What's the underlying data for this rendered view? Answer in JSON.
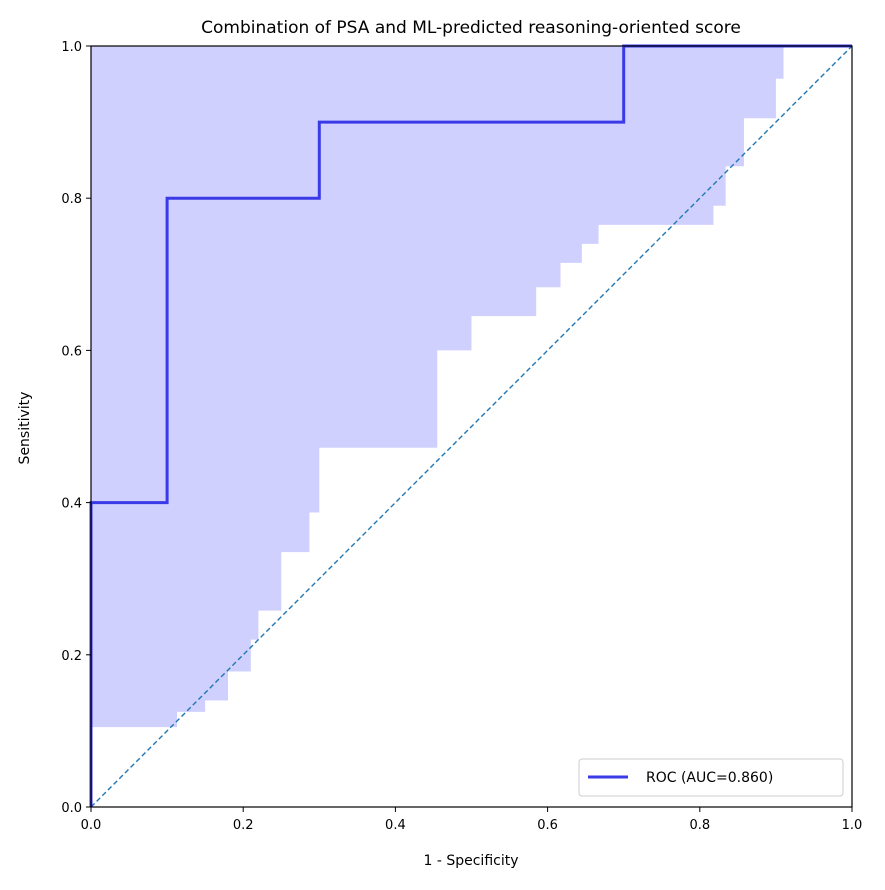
{
  "chart_data": {
    "type": "line",
    "title": "Combination of PSA and ML-predicted reasoning-oriented score",
    "xlabel": "1 - Specificity",
    "ylabel": "Sensitivity",
    "xlim": [
      0,
      1
    ],
    "ylim": [
      0,
      1
    ],
    "x_ticks": [
      "0.0",
      "0.2",
      "0.4",
      "0.6",
      "0.8",
      "1.0"
    ],
    "y_ticks": [
      "0.0",
      "0.2",
      "0.4",
      "0.6",
      "0.8",
      "1.0"
    ],
    "grid": false,
    "legend_position": "bottom-right",
    "colors": {
      "roc": "#3a3ae6",
      "band": "#d0d0ff",
      "chance": "#1f77b4"
    },
    "series": [
      {
        "name": "ROC (AUC=0.860)",
        "x": [
          0.0,
          0.0,
          0.1,
          0.1,
          0.3,
          0.3,
          0.7,
          0.7,
          1.0
        ],
        "y": [
          0.0,
          0.4,
          0.4,
          0.8,
          0.8,
          0.9,
          0.9,
          1.0,
          1.0
        ]
      }
    ],
    "reference_line": {
      "x": [
        0,
        1
      ],
      "y": [
        0,
        1
      ],
      "style": "dashed"
    },
    "confidence_band": {
      "fpr": [
        0.0,
        0.1,
        0.113,
        0.15,
        0.18,
        0.21,
        0.22,
        0.25,
        0.287,
        0.3,
        0.455,
        0.5,
        0.585,
        0.617,
        0.645,
        0.667,
        0.818,
        0.834,
        0.858,
        0.9,
        0.91,
        1.0
      ],
      "lower": [
        0.105,
        0.105,
        0.125,
        0.14,
        0.178,
        0.22,
        0.258,
        0.335,
        0.387,
        0.472,
        0.6,
        0.645,
        0.683,
        0.715,
        0.74,
        0.765,
        0.79,
        0.842,
        0.905,
        0.957,
        1.0,
        1.0
      ],
      "upper": 1.0
    }
  }
}
